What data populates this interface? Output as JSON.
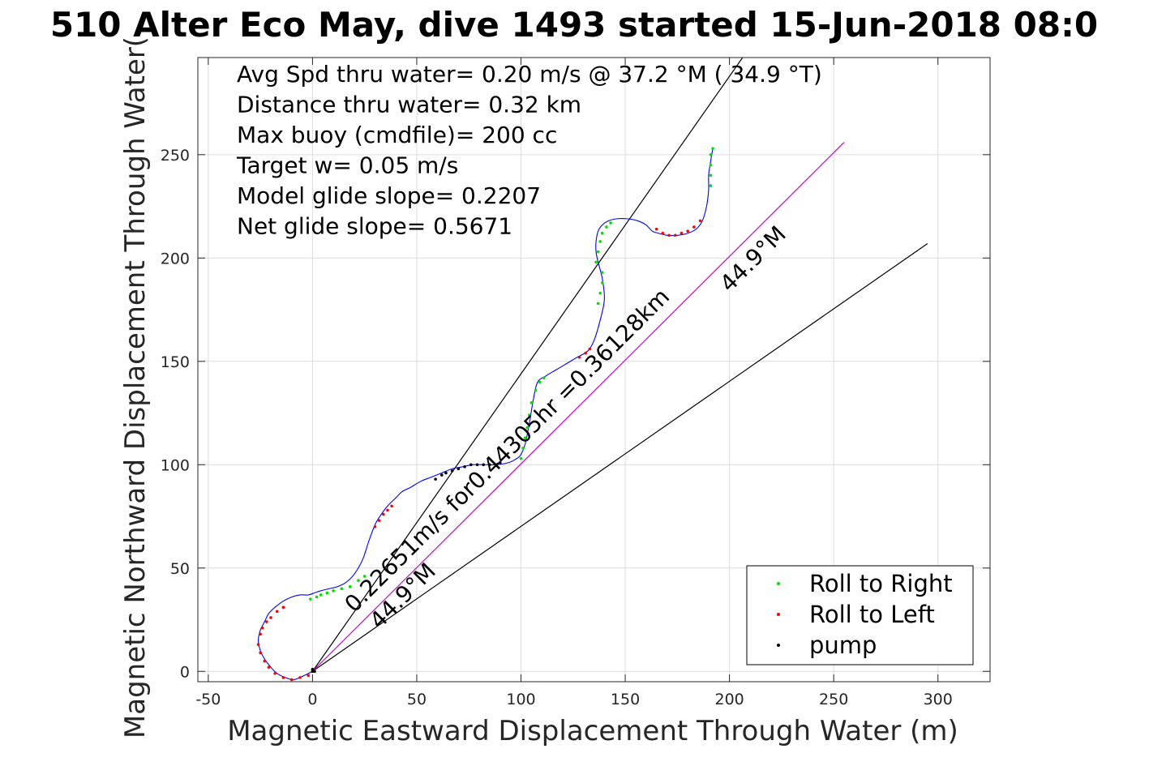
{
  "chart_data": {
    "type": "line",
    "title": "510 Alter Eco May, dive 1493 started 15-Jun-2018 08:0",
    "xlabel": "Magnetic Eastward Displacement Through Water (m)",
    "ylabel": "Magnetic Northward Displacement Through Water(",
    "xlim": [
      -55,
      325
    ],
    "ylim": [
      -5,
      297
    ],
    "x_ticks": [
      -50,
      0,
      50,
      100,
      150,
      200,
      250,
      300
    ],
    "y_ticks": [
      0,
      50,
      100,
      150,
      200,
      250
    ],
    "x_tick_labels": [
      "-50",
      "0",
      "50",
      "100",
      "150",
      "200",
      "250",
      "300"
    ],
    "y_tick_labels": [
      "0",
      "50",
      "100",
      "150",
      "200",
      "250"
    ],
    "grid": true,
    "legend_position": "bottom-right",
    "info_lines": [
      "Avg Spd thru water=  0.20 m/s @  37.2 °M ( 34.9 °T)",
      "Distance thru water=  0.32 km",
      "Max buoy (cmdfile)= 200 cc",
      "Target w= 0.05 m/s",
      "Model glide slope= 0.2207",
      "Net glide slope= 0.5671"
    ],
    "annotations": [
      {
        "text": "0.22651m/s for0.44305hr =0.36128km",
        "x": 20,
        "y": 28,
        "angle": 44.9
      },
      {
        "text": "44.9°M",
        "x": 32,
        "y": 20,
        "angle": 44.9
      },
      {
        "text": "44.9°M",
        "x": 200,
        "y": 183,
        "angle": 44.9
      }
    ],
    "reference_lines": [
      {
        "name": "heading-line-steep",
        "x": [
          0,
          207
        ],
        "y": [
          0,
          298
        ],
        "color": "#000000"
      },
      {
        "name": "heading-line-shallow",
        "x": [
          0,
          295
        ],
        "y": [
          0,
          207
        ],
        "color": "#000000"
      },
      {
        "name": "net-displacement-line",
        "x": [
          0,
          255
        ],
        "y": [
          0,
          256
        ],
        "color": "#cc00cc"
      }
    ],
    "track": {
      "color": "#0000ff",
      "x": [
        0,
        -4,
        -9,
        -13,
        -17,
        -20,
        -23,
        -25,
        -26,
        -25,
        -23,
        -21,
        -18,
        -14,
        -10,
        -6,
        -2,
        1,
        4,
        8,
        12,
        16,
        20,
        24,
        27,
        30,
        33,
        36,
        40,
        43,
        47,
        52,
        57,
        62,
        67,
        72,
        77,
        82,
        88,
        94,
        98,
        100,
        102,
        104,
        106,
        108,
        112,
        117,
        122,
        127,
        132,
        135,
        138,
        140,
        139,
        137,
        136,
        136,
        137,
        139,
        142,
        146,
        151,
        156,
        160,
        163,
        166,
        170,
        175,
        180,
        184,
        187,
        189,
        190,
        190,
        191,
        192
      ],
      "y": [
        0,
        -2,
        -4,
        -3,
        -1,
        2,
        6,
        10,
        15,
        20,
        24,
        28,
        31,
        34,
        36,
        37,
        37,
        38,
        39,
        40,
        41,
        43,
        47,
        54,
        63,
        71,
        76,
        80,
        84,
        87,
        89,
        92,
        94,
        96,
        98,
        99,
        100,
        100,
        100,
        101,
        103,
        105,
        110,
        120,
        132,
        140,
        143,
        146,
        149,
        152,
        155,
        160,
        170,
        180,
        190,
        198,
        203,
        208,
        213,
        216,
        218,
        219,
        219,
        218,
        216,
        213,
        212,
        211,
        211,
        212,
        214,
        218,
        225,
        233,
        240,
        247,
        253
      ]
    },
    "markers": [
      {
        "name": "Roll to Right",
        "color": "#00e000",
        "points": [
          [
            -1,
            35
          ],
          [
            2,
            36
          ],
          [
            4,
            37
          ],
          [
            7,
            38
          ],
          [
            10,
            39
          ],
          [
            14,
            40
          ],
          [
            18,
            41
          ],
          [
            22,
            44
          ],
          [
            25,
            46
          ],
          [
            100,
            103
          ],
          [
            101,
            108
          ],
          [
            102,
            113
          ],
          [
            103,
            118
          ],
          [
            104,
            124
          ],
          [
            105,
            130
          ],
          [
            107,
            136
          ],
          [
            109,
            140
          ],
          [
            111,
            142
          ],
          [
            136,
            198
          ],
          [
            137,
            203
          ],
          [
            138,
            208
          ],
          [
            139,
            212
          ],
          [
            141,
            215
          ],
          [
            143,
            217
          ],
          [
            137,
            178
          ],
          [
            138,
            183
          ],
          [
            139,
            188
          ],
          [
            139,
            193
          ],
          [
            191,
            235
          ],
          [
            191,
            240
          ],
          [
            191,
            245
          ],
          [
            191,
            250
          ],
          [
            192,
            253
          ]
        ]
      },
      {
        "name": "Roll to Left",
        "color": "#ff0000",
        "points": [
          [
            -2,
            -2
          ],
          [
            -6,
            -3
          ],
          [
            -10,
            -4
          ],
          [
            -14,
            -3
          ],
          [
            -18,
            -1
          ],
          [
            -21,
            2
          ],
          [
            -23,
            5
          ],
          [
            -25,
            9
          ],
          [
            -26,
            13
          ],
          [
            -25,
            18
          ],
          [
            -24,
            21
          ],
          [
            -22,
            24
          ],
          [
            -20,
            26
          ],
          [
            -17,
            29
          ],
          [
            -14,
            31
          ],
          [
            30,
            70
          ],
          [
            32,
            73
          ],
          [
            34,
            76
          ],
          [
            36,
            78
          ],
          [
            38,
            80
          ],
          [
            128,
            152
          ],
          [
            131,
            154
          ],
          [
            133,
            156
          ],
          [
            165,
            214
          ],
          [
            168,
            212
          ],
          [
            171,
            211
          ],
          [
            174,
            211
          ],
          [
            177,
            212
          ],
          [
            180,
            213
          ],
          [
            183,
            215
          ],
          [
            186,
            218
          ]
        ]
      },
      {
        "name": "pump",
        "color": "#000000",
        "points": [
          [
            0,
            0
          ],
          [
            0,
            1
          ],
          [
            1,
            0
          ],
          [
            59,
            93
          ],
          [
            62,
            95
          ],
          [
            64,
            96
          ],
          [
            67,
            97
          ],
          [
            70,
            98
          ],
          [
            73,
            99
          ],
          [
            76,
            100
          ],
          [
            79,
            100
          ],
          [
            82,
            100
          ],
          [
            85,
            100
          ],
          [
            88,
            100
          ],
          [
            90,
            101
          ]
        ]
      }
    ]
  }
}
